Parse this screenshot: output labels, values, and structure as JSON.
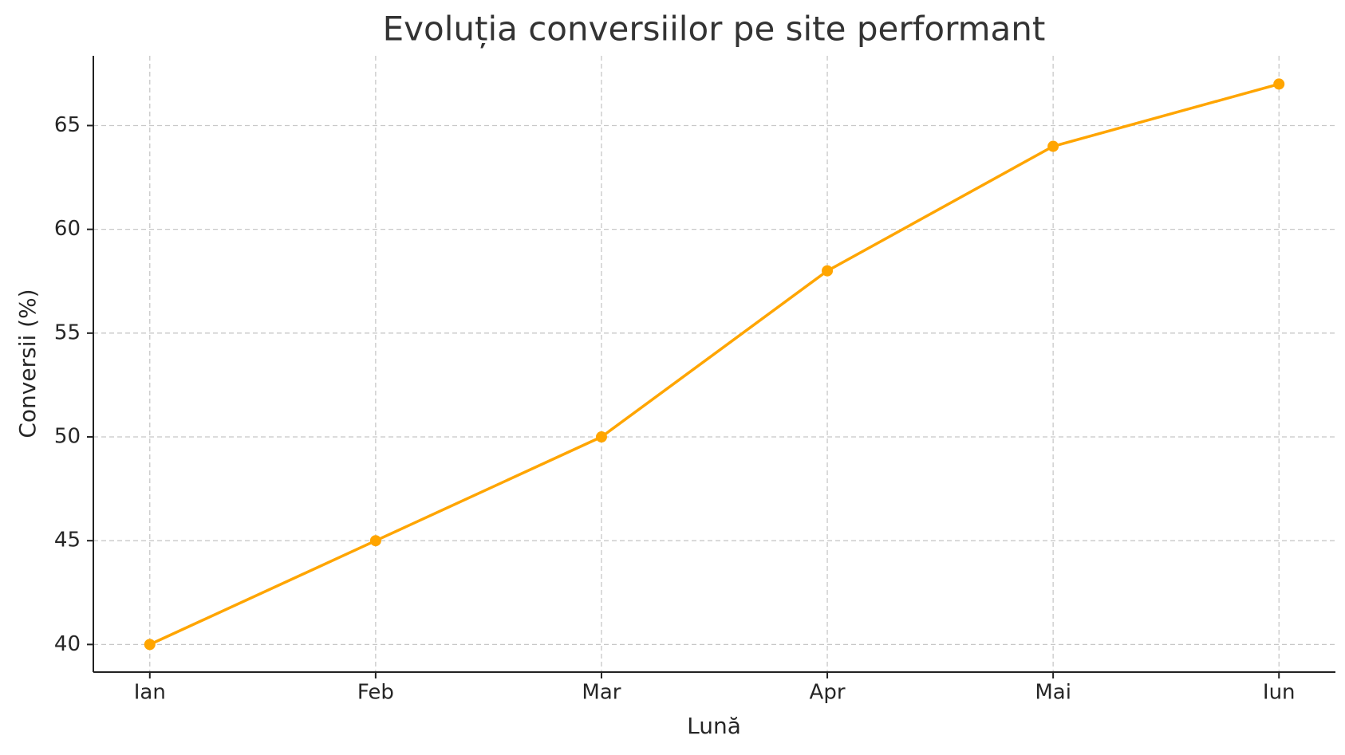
{
  "chart_data": {
    "type": "line",
    "title": "Evoluția conversiilor pe site performant",
    "x_label": "Lună",
    "y_label": "Conversii (%)",
    "categories": [
      "Ian",
      "Feb",
      "Mar",
      "Apr",
      "Mai",
      "Iun"
    ],
    "series": [
      {
        "name": "Conversii",
        "color": "#ffa500",
        "values": [
          40,
          45,
          50,
          58,
          64,
          67
        ]
      }
    ],
    "ylim": [
      38.67,
      68.36
    ],
    "yticks": [
      40,
      45,
      50,
      55,
      60,
      65
    ],
    "grid": true
  }
}
